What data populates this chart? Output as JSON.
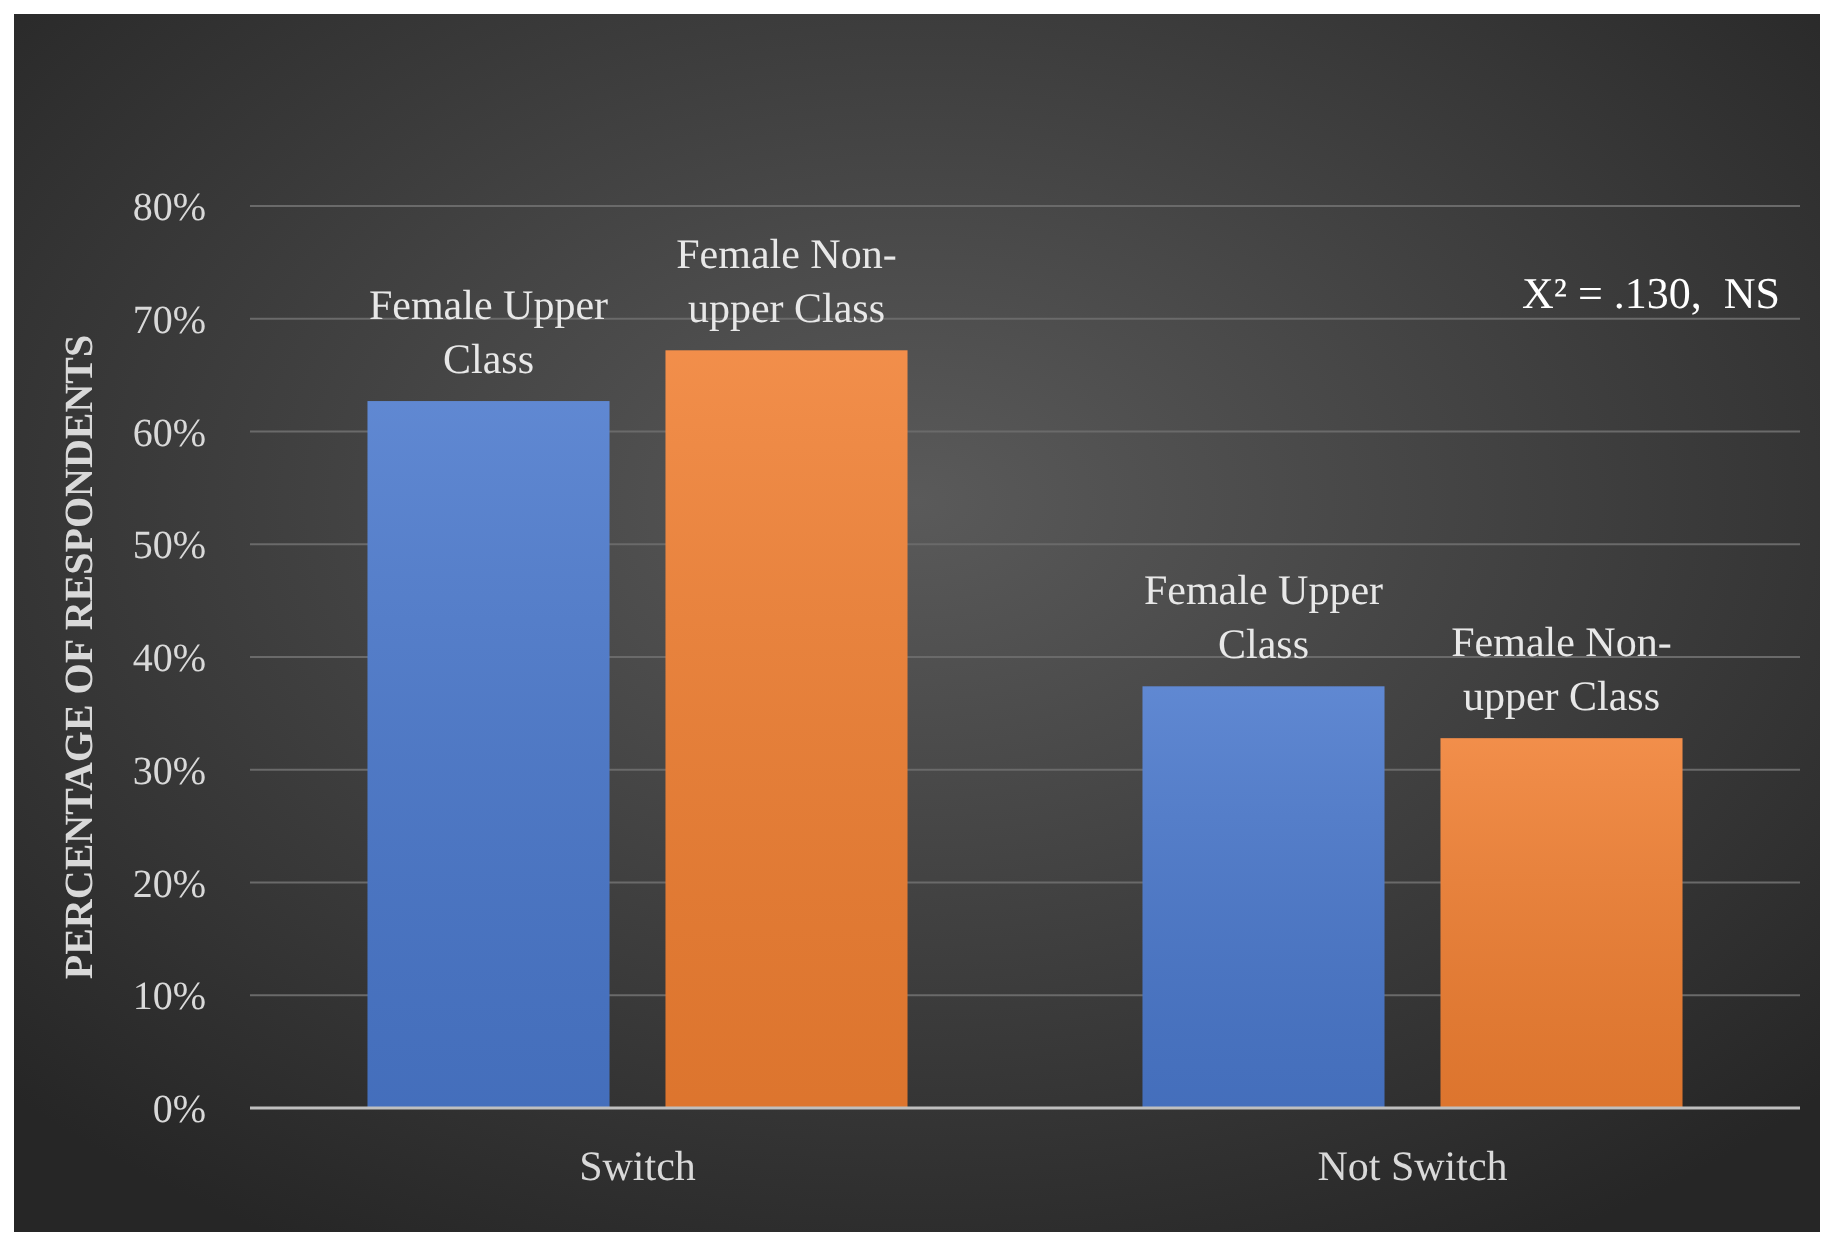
{
  "chart_data": {
    "type": "bar",
    "ylabel": "PERCENTAGE OF RESPONDENTS",
    "categories": [
      "Switch",
      "Not Switch"
    ],
    "series": [
      {
        "name": "Female Upper Class",
        "color": "#4a78cc",
        "values": [
          62.7,
          37.4
        ]
      },
      {
        "name": "Female Non-upper Class",
        "color": "#f07f32",
        "values": [
          67.2,
          32.8
        ]
      }
    ],
    "ylim": [
      0,
      80
    ],
    "yticks": [
      {
        "value": 0,
        "label": "0%"
      },
      {
        "value": 10,
        "label": "10%"
      },
      {
        "value": 20,
        "label": "20%"
      },
      {
        "value": 30,
        "label": "30%"
      },
      {
        "value": 40,
        "label": "40%"
      },
      {
        "value": 50,
        "label": "50%"
      },
      {
        "value": 60,
        "label": "60%"
      },
      {
        "value": 70,
        "label": "70%"
      },
      {
        "value": 80,
        "label": "80%"
      }
    ],
    "grid": "y",
    "annotations": [
      "X² = .130,  NS"
    ]
  }
}
